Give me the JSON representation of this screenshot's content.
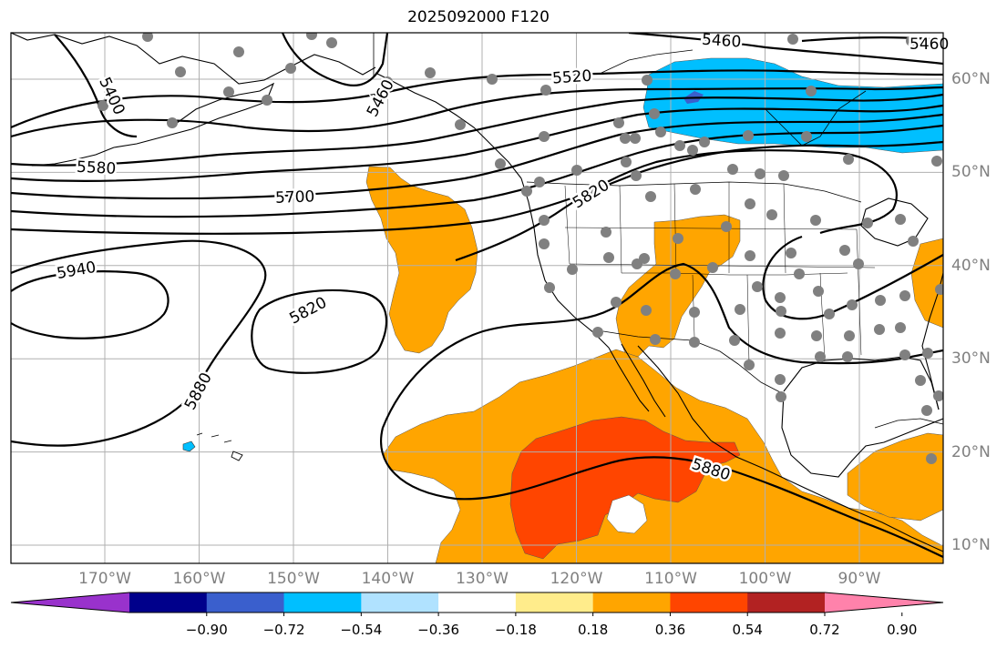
{
  "title": "2025092000 F120",
  "lon_labels": [
    {
      "text": "170°W",
      "lon": -170
    },
    {
      "text": "160°W",
      "lon": -160
    },
    {
      "text": "150°W",
      "lon": -150
    },
    {
      "text": "140°W",
      "lon": -140
    },
    {
      "text": "130°W",
      "lon": -130
    },
    {
      "text": "120°W",
      "lon": -120
    },
    {
      "text": "110°W",
      "lon": -110
    },
    {
      "text": "100°W",
      "lon": -100
    },
    {
      "text": "90°W",
      "lon": -90
    }
  ],
  "lat_labels": [
    {
      "text": "60°N",
      "lat": 60
    },
    {
      "text": "50°N",
      "lat": 50
    },
    {
      "text": "40°N",
      "lat": 40
    },
    {
      "text": "30°N",
      "lat": 30
    },
    {
      "text": "20°N",
      "lat": 20
    },
    {
      "text": "10°N",
      "lat": 10
    }
  ],
  "contour_labels": [
    "5400",
    "5460",
    "5460",
    "5460",
    "5520",
    "5580",
    "5700",
    "5820",
    "5820",
    "5940",
    "5880",
    "5880"
  ],
  "colorbar": {
    "colors": [
      "#9932cc",
      "#00008b",
      "#3a5fcd",
      "#00bfff",
      "#b0e2ff",
      "#ffffff",
      "#ffec8b",
      "#ffa500",
      "#ff4500",
      "#b22222",
      "#ff82ab"
    ],
    "tick_labels": [
      "−0.90",
      "−0.72",
      "−0.54",
      "−0.36",
      "−0.18",
      "0.18",
      "0.36",
      "0.54",
      "0.72",
      "0.90"
    ]
  },
  "colors": {
    "orange": "#ffa500",
    "red_orange": "#ff4500",
    "sky_blue": "#00bfff",
    "blue": "#3a5fcd",
    "station": "#808080",
    "grid": "#b0b0b0"
  }
}
